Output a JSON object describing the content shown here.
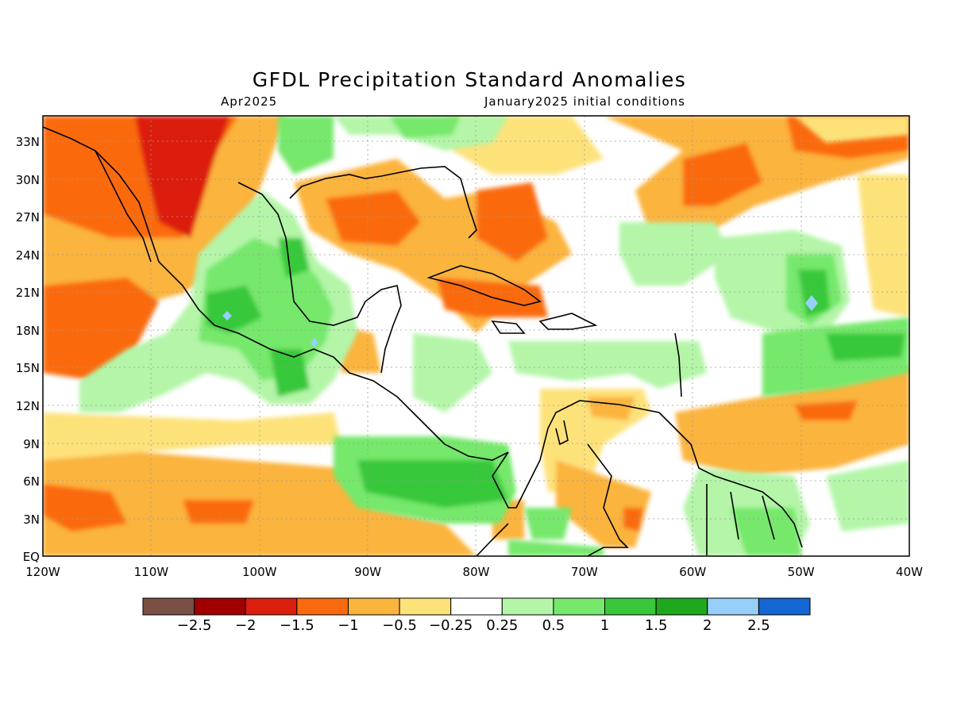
{
  "title": "GFDL Precipitation Standard Anomalies",
  "subtitle_left": "Apr2025",
  "subtitle_right": "January2025 initial conditions",
  "map": {
    "lat_ticks": [
      "33N",
      "30N",
      "27N",
      "24N",
      "21N",
      "18N",
      "15N",
      "12N",
      "9N",
      "6N",
      "3N",
      "EQ"
    ],
    "lon_ticks": [
      "120W",
      "110W",
      "100W",
      "90W",
      "80W",
      "70W",
      "60W",
      "50W",
      "40W"
    ],
    "lon_range": [
      -120,
      -40
    ],
    "lat_range": [
      0,
      35
    ]
  },
  "colorbar": {
    "colors": [
      "#7a5044",
      "#a10000",
      "#dc1e0c",
      "#fa6a0e",
      "#fbb43c",
      "#fde27a",
      "#ffffff",
      "#b4f5a8",
      "#76e86c",
      "#38c83a",
      "#1ea81e",
      "#96d0fa",
      "#1466d2"
    ],
    "labels": [
      "−2.5",
      "−2",
      "−1.5",
      "−1",
      "−0.5",
      "−0.25",
      "0.25",
      "0.5",
      "1",
      "1.5",
      "2",
      "2.5"
    ]
  }
}
